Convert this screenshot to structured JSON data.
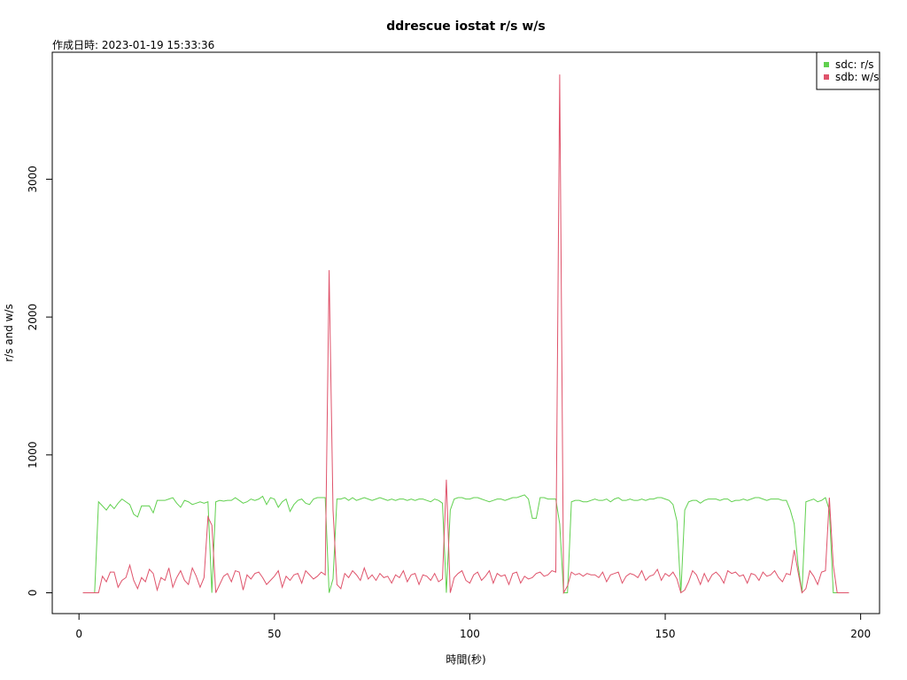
{
  "chart_data": {
    "type": "line",
    "title": "ddrescue iostat r/s w/s",
    "subtitle": "作成日時: 2023-01-19 15:33:36",
    "x_label": "時間(秒)",
    "y_label": "r/s and w/s",
    "xlim": [
      -6.84,
      204.84
    ],
    "ylim": [
      -151,
      3921
    ],
    "xticks": [
      0,
      50,
      100,
      150,
      200
    ],
    "yticks": [
      0,
      1000,
      2000,
      3000
    ],
    "legend_position": "top-right",
    "x": [
      1,
      2,
      3,
      4,
      5,
      6,
      7,
      8,
      9,
      10,
      11,
      12,
      13,
      14,
      15,
      16,
      17,
      18,
      19,
      20,
      21,
      22,
      23,
      24,
      25,
      26,
      27,
      28,
      29,
      30,
      31,
      32,
      33,
      34,
      35,
      36,
      37,
      38,
      39,
      40,
      41,
      42,
      43,
      44,
      45,
      46,
      47,
      48,
      49,
      50,
      51,
      52,
      53,
      54,
      55,
      56,
      57,
      58,
      59,
      60,
      61,
      62,
      63,
      64,
      65,
      66,
      67,
      68,
      69,
      70,
      71,
      72,
      73,
      74,
      75,
      76,
      77,
      78,
      79,
      80,
      81,
      82,
      83,
      84,
      85,
      86,
      87,
      88,
      89,
      90,
      91,
      92,
      93,
      94,
      95,
      96,
      97,
      98,
      99,
      100,
      101,
      102,
      103,
      104,
      105,
      106,
      107,
      108,
      109,
      110,
      111,
      112,
      113,
      114,
      115,
      116,
      117,
      118,
      119,
      120,
      121,
      122,
      123,
      124,
      125,
      126,
      127,
      128,
      129,
      130,
      131,
      132,
      133,
      134,
      135,
      136,
      137,
      138,
      139,
      140,
      141,
      142,
      143,
      144,
      145,
      146,
      147,
      148,
      149,
      150,
      151,
      152,
      153,
      154,
      155,
      156,
      157,
      158,
      159,
      160,
      161,
      162,
      163,
      164,
      165,
      166,
      167,
      168,
      169,
      170,
      171,
      172,
      173,
      174,
      175,
      176,
      177,
      178,
      179,
      180,
      181,
      182,
      183,
      184,
      185,
      186,
      187,
      188,
      189,
      190,
      191,
      192,
      193,
      194,
      195,
      196,
      197
    ],
    "series": [
      {
        "name": "sdc: r/s",
        "color": "#61d04f",
        "values": [
          0,
          0,
          0,
          0,
          660,
          630,
          600,
          640,
          610,
          650,
          680,
          660,
          640,
          570,
          550,
          630,
          630,
          630,
          580,
          670,
          670,
          670,
          680,
          690,
          650,
          620,
          670,
          660,
          640,
          650,
          660,
          650,
          660,
          0,
          660,
          670,
          665,
          670,
          670,
          690,
          670,
          650,
          660,
          680,
          670,
          680,
          700,
          640,
          690,
          680,
          620,
          660,
          680,
          590,
          640,
          670,
          680,
          650,
          640,
          680,
          690,
          690,
          690,
          0,
          100,
          680,
          680,
          690,
          670,
          690,
          670,
          680,
          690,
          680,
          670,
          680,
          690,
          680,
          670,
          680,
          670,
          680,
          680,
          670,
          680,
          670,
          680,
          680,
          670,
          660,
          680,
          670,
          650,
          0,
          600,
          680,
          690,
          690,
          680,
          680,
          690,
          690,
          680,
          670,
          660,
          670,
          680,
          680,
          670,
          680,
          690,
          690,
          700,
          710,
          680,
          540,
          540,
          690,
          690,
          680,
          680,
          680,
          500,
          0,
          0,
          660,
          670,
          670,
          660,
          660,
          670,
          680,
          670,
          670,
          680,
          660,
          680,
          690,
          670,
          670,
          680,
          670,
          670,
          680,
          670,
          680,
          680,
          690,
          690,
          680,
          670,
          640,
          520,
          0,
          600,
          660,
          670,
          670,
          650,
          670,
          680,
          680,
          680,
          670,
          680,
          680,
          660,
          670,
          670,
          680,
          670,
          680,
          690,
          690,
          680,
          670,
          680,
          680,
          680,
          670,
          670,
          600,
          500,
          200,
          0,
          660,
          670,
          680,
          660,
          670,
          690,
          600,
          0,
          0,
          0,
          0,
          0
        ]
      },
      {
        "name": "sdb: w/s",
        "color": "#df536b",
        "values": [
          0,
          0,
          0,
          0,
          0,
          120,
          80,
          150,
          150,
          40,
          90,
          110,
          200,
          90,
          30,
          110,
          80,
          170,
          140,
          20,
          110,
          90,
          180,
          40,
          110,
          160,
          90,
          60,
          180,
          120,
          40,
          110,
          550,
          490,
          0,
          60,
          120,
          140,
          80,
          160,
          150,
          20,
          130,
          100,
          140,
          150,
          110,
          60,
          90,
          120,
          160,
          40,
          120,
          90,
          130,
          140,
          70,
          160,
          130,
          100,
          120,
          150,
          130,
          2340,
          600,
          60,
          30,
          140,
          110,
          160,
          130,
          90,
          180,
          100,
          130,
          90,
          140,
          110,
          120,
          70,
          130,
          110,
          160,
          80,
          130,
          140,
          60,
          130,
          120,
          90,
          140,
          80,
          100,
          820,
          0,
          110,
          140,
          160,
          90,
          70,
          130,
          150,
          90,
          120,
          160,
          70,
          140,
          120,
          130,
          60,
          140,
          150,
          70,
          120,
          100,
          110,
          140,
          150,
          120,
          130,
          160,
          150,
          3760,
          0,
          50,
          150,
          130,
          140,
          120,
          140,
          130,
          130,
          110,
          150,
          80,
          130,
          140,
          150,
          70,
          120,
          140,
          130,
          110,
          160,
          90,
          120,
          130,
          170,
          90,
          140,
          120,
          150,
          100,
          0,
          20,
          80,
          160,
          130,
          60,
          140,
          80,
          130,
          150,
          120,
          70,
          160,
          140,
          150,
          120,
          130,
          70,
          140,
          130,
          90,
          150,
          120,
          130,
          160,
          110,
          80,
          140,
          130,
          310,
          150,
          0,
          30,
          160,
          120,
          60,
          150,
          160,
          690,
          200,
          0,
          0,
          0,
          0
        ]
      }
    ]
  }
}
